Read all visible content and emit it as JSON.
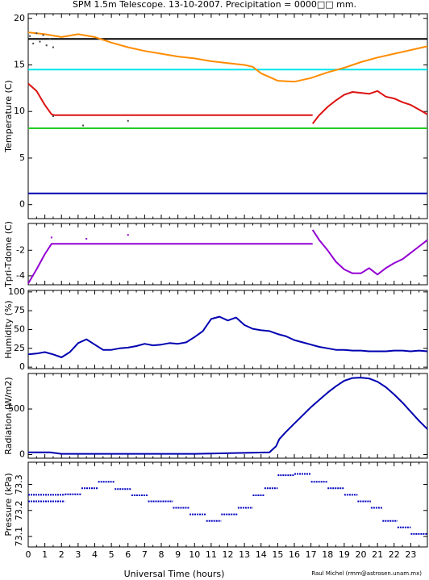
{
  "title": "SPM 1.5m Telescope. 13-10-2007. Precipitation = 0000□□ mm.",
  "xlabel": "Universal Time (hours)",
  "credit": "Raul Michel (rmm@astrosen.unam.mx)",
  "chart_data": [
    {
      "type": "line",
      "ylabel": "Temperature (C)",
      "xlim": [
        0,
        24
      ],
      "ylim": [
        -1.5,
        20.5
      ],
      "xticks": [
        0,
        1,
        2,
        3,
        4,
        5,
        6,
        7,
        8,
        9,
        10,
        11,
        12,
        13,
        14,
        15,
        16,
        17,
        18,
        19,
        20,
        21,
        22,
        23
      ],
      "yticks": [
        0,
        5,
        10,
        15,
        20
      ],
      "series": [
        {
          "color": "#000000",
          "style": "line",
          "x": [
            0,
            24
          ],
          "y": [
            17.8,
            17.8
          ]
        },
        {
          "color": "#00e5ee",
          "style": "line",
          "x": [
            0,
            24
          ],
          "y": [
            14.5,
            14.5
          ]
        },
        {
          "color": "#22cc22",
          "style": "line",
          "x": [
            0,
            24
          ],
          "y": [
            8.2,
            8.2
          ]
        },
        {
          "color": "#0000b0",
          "style": "line",
          "x": [
            0,
            24
          ],
          "y": [
            1.2,
            1.2
          ]
        },
        {
          "color": "#ff8c00",
          "style": "line",
          "x": [
            0,
            1,
            2,
            3,
            4,
            5,
            6,
            7,
            8,
            9,
            10,
            11,
            12,
            13,
            13.5,
            14,
            15,
            16,
            17,
            18,
            19,
            20,
            21,
            22,
            23,
            24
          ],
          "y": [
            18.5,
            18.3,
            18.0,
            18.3,
            18.0,
            17.4,
            16.9,
            16.5,
            16.2,
            15.9,
            15.7,
            15.4,
            15.2,
            15.0,
            14.8,
            14.1,
            13.3,
            13.2,
            13.6,
            14.2,
            14.7,
            15.3,
            15.8,
            16.2,
            16.6,
            17.0
          ]
        },
        {
          "color": "#dd1111",
          "style": "line",
          "x": [
            0,
            0.5,
            1.0,
            1.4,
            1.6,
            5,
            10,
            15,
            17.1
          ],
          "y": [
            13.0,
            12.2,
            10.7,
            9.7,
            9.6,
            9.6,
            9.6,
            9.6,
            9.6
          ]
        },
        {
          "color": "#dd1111",
          "style": "line",
          "x": [
            17.1,
            17.5,
            18,
            18.5,
            19,
            19.5,
            20,
            20.5,
            21,
            21.5,
            22,
            22.5,
            23,
            23.5,
            24
          ],
          "y": [
            8.7,
            9.6,
            10.5,
            11.2,
            11.8,
            12.1,
            12.0,
            11.9,
            12.2,
            11.6,
            11.4,
            11.0,
            10.7,
            10.2,
            9.7
          ]
        },
        {
          "color": "#444444",
          "style": "points",
          "x": [
            0.1,
            0.3,
            0.5,
            0.7,
            0.9,
            1.1,
            1.3,
            1.5,
            1.5,
            6.0,
            3.3
          ],
          "y": [
            18.1,
            17.3,
            18.4,
            17.5,
            18.2,
            17.1,
            17.8,
            16.9,
            9.5,
            9.0,
            8.5
          ]
        }
      ]
    },
    {
      "type": "line",
      "ylabel": "Tpri-Tdome (C)",
      "xlim": [
        0,
        24
      ],
      "ylim": [
        -4.7,
        0.1
      ],
      "xticks": [
        0,
        1,
        2,
        3,
        4,
        5,
        6,
        7,
        8,
        9,
        10,
        11,
        12,
        13,
        14,
        15,
        16,
        17,
        18,
        19,
        20,
        21,
        22,
        23
      ],
      "yticks": [
        -4,
        -2
      ],
      "series": [
        {
          "color": "#9400d3",
          "style": "line",
          "x": [
            0,
            0.5,
            1.0,
            1.4,
            1.6,
            5,
            10,
            15,
            17.1
          ],
          "y": [
            -4.6,
            -3.5,
            -2.3,
            -1.5,
            -1.5,
            -1.5,
            -1.5,
            -1.5,
            -1.5
          ]
        },
        {
          "color": "#9400d3",
          "style": "line",
          "x": [
            17.1,
            17.5,
            18,
            18.5,
            19,
            19.5,
            20,
            20.5,
            21,
            21.5,
            22,
            22.5,
            23,
            23.5,
            24
          ],
          "y": [
            -0.4,
            -1.2,
            -2.0,
            -2.9,
            -3.5,
            -3.8,
            -3.8,
            -3.4,
            -3.9,
            -3.4,
            -3.0,
            -2.7,
            -2.2,
            -1.7,
            -1.2
          ]
        },
        {
          "color": "#9400d3",
          "style": "points",
          "x": [
            1.4,
            3.5,
            6.0
          ],
          "y": [
            -1.0,
            -1.1,
            -0.8
          ]
        }
      ]
    },
    {
      "type": "line",
      "ylabel": "Humidity (%)",
      "xlim": [
        0,
        24
      ],
      "ylim": [
        -2,
        102
      ],
      "xticks": [
        0,
        1,
        2,
        3,
        4,
        5,
        6,
        7,
        8,
        9,
        10,
        11,
        12,
        13,
        14,
        15,
        16,
        17,
        18,
        19,
        20,
        21,
        22,
        23
      ],
      "yticks": [
        0,
        25,
        50,
        75,
        100
      ],
      "series": [
        {
          "color": "#0000b0",
          "style": "line",
          "x": [
            0,
            0.5,
            1,
            1.5,
            2,
            2.5,
            3,
            3.5,
            4,
            4.5,
            5,
            5.5,
            6,
            6.5,
            7,
            7.5,
            8,
            8.5,
            9,
            9.5,
            10,
            10.5,
            11,
            11.5,
            12,
            12.5,
            13,
            13.5,
            14,
            14.5,
            15,
            15.5,
            16,
            16.5,
            17,
            17.5,
            18,
            18.5,
            19,
            19.5,
            20,
            20.5,
            21,
            21.5,
            22,
            22.5,
            23,
            23.5,
            24
          ],
          "y": [
            17,
            18,
            20,
            17,
            13,
            20,
            32,
            37,
            30,
            23,
            23,
            25,
            26,
            28,
            31,
            29,
            30,
            32,
            31,
            33,
            40,
            48,
            64,
            67,
            62,
            66,
            56,
            51,
            49,
            48,
            44,
            41,
            36,
            33,
            30,
            27,
            25,
            23,
            23,
            22,
            22,
            21,
            21,
            21,
            22,
            22,
            21,
            22,
            21
          ]
        }
      ]
    },
    {
      "type": "line",
      "ylabel": "Radiation (W/m2)",
      "xlim": [
        0,
        24
      ],
      "ylim": [
        -40,
        890
      ],
      "xticks": [
        0,
        1,
        2,
        3,
        4,
        5,
        6,
        7,
        8,
        9,
        10,
        11,
        12,
        13,
        14,
        15,
        16,
        17,
        18,
        19,
        20,
        21,
        22,
        23
      ],
      "yticks": [
        0,
        500
      ],
      "series": [
        {
          "color": "#0000b0",
          "style": "line",
          "x": [
            0,
            1.3,
            2,
            5,
            10,
            14.5,
            14.9,
            15.1,
            15.5,
            16,
            16.5,
            17,
            17.5,
            18,
            18.5,
            19,
            19.5,
            20,
            20.5,
            21,
            21.5,
            22,
            22.5,
            23,
            23.5,
            24
          ],
          "y": [
            25,
            25,
            8,
            8,
            8,
            25,
            90,
            170,
            250,
            340,
            430,
            520,
            600,
            680,
            750,
            810,
            840,
            845,
            835,
            800,
            740,
            660,
            570,
            470,
            370,
            280
          ]
        }
      ]
    },
    {
      "type": "scatter",
      "ylabel": "Pressure (kPa)",
      "xlim": [
        0,
        24
      ],
      "ylim": [
        73.06,
        73.385
      ],
      "xticks": [
        0,
        1,
        2,
        3,
        4,
        5,
        6,
        7,
        8,
        9,
        10,
        11,
        12,
        13,
        14,
        15,
        16,
        17,
        18,
        19,
        20,
        21,
        22,
        23
      ],
      "yticks": [
        73.1,
        73.2,
        73.3
      ],
      "series": [
        {
          "color": "#0000c0",
          "style": "segments",
          "x0": [
            0,
            0,
            2.2,
            3.2,
            4.2,
            5.2,
            6.2,
            7.2,
            8.7,
            9.7,
            10.7,
            11.6,
            12.6,
            13.5,
            14.2,
            15.0,
            16.0,
            17.0,
            18.0,
            19.0,
            19.8,
            20.6,
            21.3,
            22.2,
            23.0
          ],
          "x1": [
            2.2,
            2.2,
            3.2,
            4.2,
            5.2,
            6.2,
            7.2,
            8.7,
            9.7,
            10.7,
            11.6,
            12.6,
            13.5,
            14.2,
            15.0,
            16.0,
            17.0,
            18.0,
            19.0,
            19.8,
            20.6,
            21.3,
            22.2,
            23.0,
            24.0
          ],
          "y": [
            73.26,
            73.235,
            73.262,
            73.285,
            73.31,
            73.282,
            73.258,
            73.235,
            73.21,
            73.185,
            73.16,
            73.185,
            73.21,
            73.258,
            73.285,
            73.335,
            73.34,
            73.31,
            73.285,
            73.26,
            73.235,
            73.21,
            73.16,
            73.135,
            73.11
          ]
        }
      ]
    }
  ]
}
